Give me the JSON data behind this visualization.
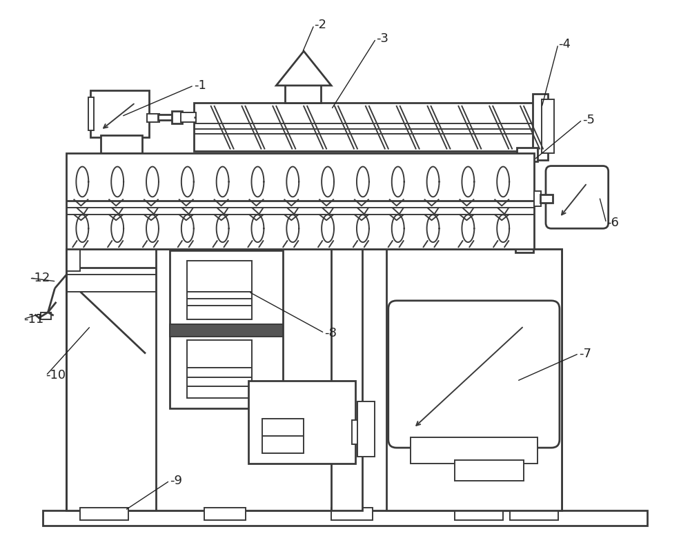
{
  "bg_color": "#ffffff",
  "lc": "#3a3a3a",
  "lw": 1.4,
  "lw2": 2.0,
  "lw3": 2.8,
  "figsize": [
    10.0,
    7.93
  ],
  "label_fs": 13,
  "label_color": "#222222"
}
